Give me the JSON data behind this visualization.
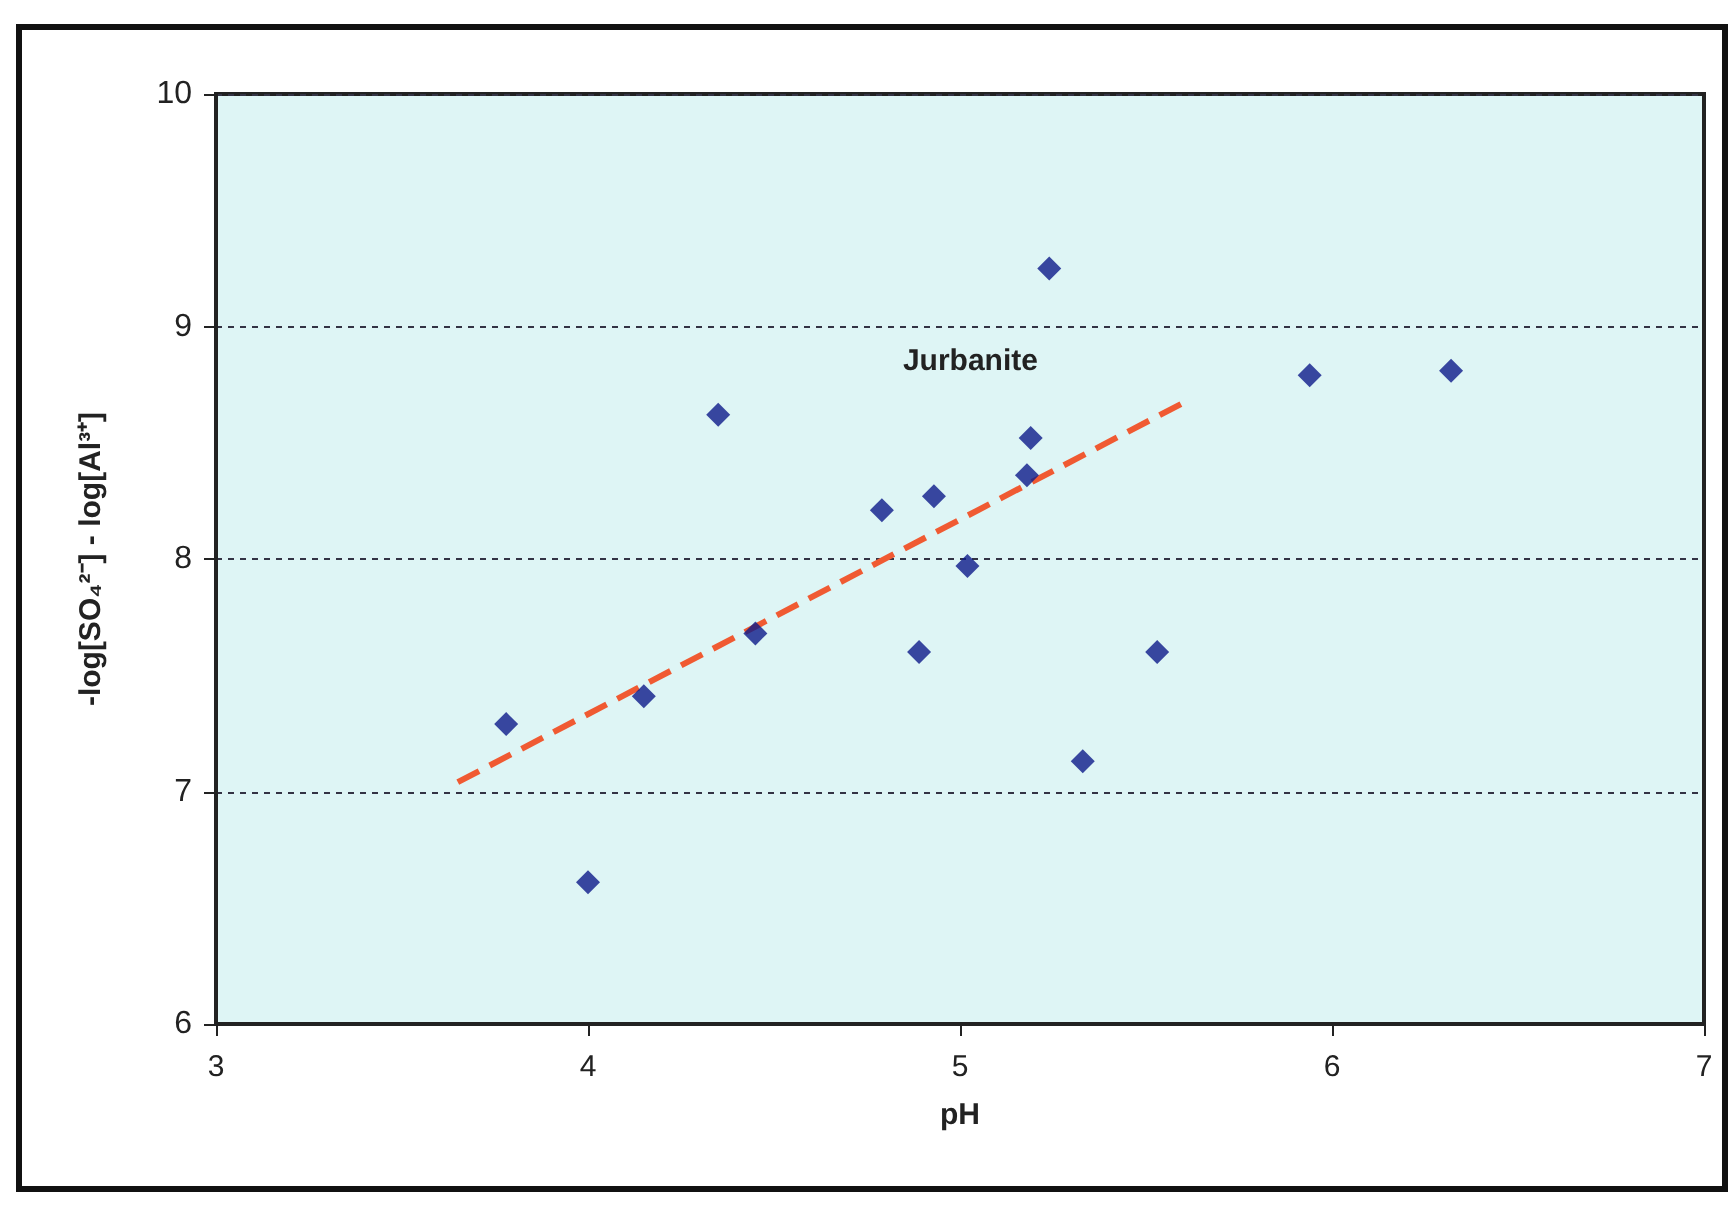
{
  "chart_data": {
    "type": "scatter",
    "xlabel": "pH",
    "ylabel": "-log[SO₄²⁻] - log[Al³⁺]",
    "xlim": [
      3,
      7
    ],
    "xticks": [
      3,
      4,
      5,
      6,
      7
    ],
    "ylim": [
      6,
      10
    ],
    "yticks": [
      6,
      7,
      8,
      9,
      10
    ],
    "grid": "y",
    "marker": "diamond",
    "series": [
      {
        "color": "#0d1a8a",
        "x": [
          3.78,
          4.0,
          4.15,
          4.35,
          4.45,
          4.79,
          4.89,
          4.93,
          5.02,
          5.18,
          5.19,
          5.24,
          5.33,
          5.53,
          5.94,
          6.32
        ],
        "values": [
          7.29,
          6.61,
          7.41,
          8.62,
          7.68,
          8.21,
          7.6,
          8.27,
          7.97,
          8.36,
          8.52,
          9.25,
          7.13,
          7.6,
          8.79,
          8.81
        ]
      },
      {
        "type": "line",
        "name": "Jurbanite",
        "color": "#f05a32",
        "line_style": "dashed",
        "marker": "none",
        "x": [
          3.65,
          5.61
        ],
        "values": [
          7.04,
          8.68
        ]
      }
    ]
  }
}
